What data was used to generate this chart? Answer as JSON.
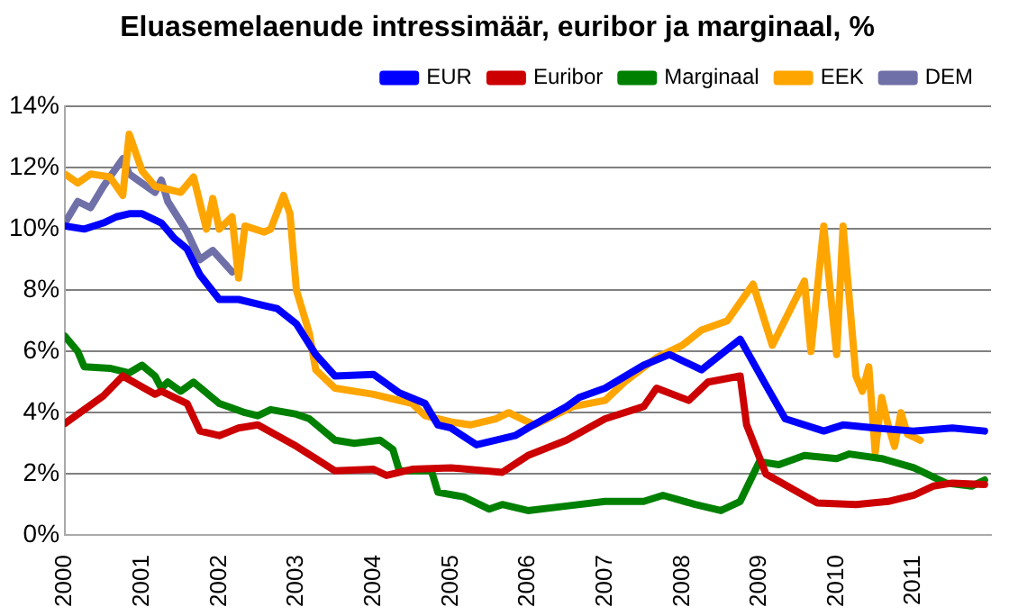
{
  "chart_data": {
    "type": "line",
    "title": "Eluasemelaenude intressimäär, euribor ja marginaal, %",
    "xlim": [
      "2000",
      "2012"
    ],
    "xticks": [
      "2000",
      "2001",
      "2002",
      "2003",
      "2004",
      "2005",
      "2006",
      "2007",
      "2008",
      "2009",
      "2010",
      "2011"
    ],
    "ylim": [
      0,
      14
    ],
    "yticks": [
      {
        "value": 0,
        "label": "0%"
      },
      {
        "value": 2,
        "label": "2%"
      },
      {
        "value": 4,
        "label": "4%"
      },
      {
        "value": 6,
        "label": "6%"
      },
      {
        "value": 8,
        "label": "8%"
      },
      {
        "value": 10,
        "label": "10%"
      },
      {
        "value": 12,
        "label": "12%"
      },
      {
        "value": 14,
        "label": "14%"
      }
    ],
    "grid": "y",
    "legend": "top right",
    "marker": "none",
    "line_style": "solid",
    "series": [
      {
        "name": "EUR",
        "color": "#0000ff",
        "x": [
          "2000-01",
          "2000-04",
          "2000-07",
          "2000-09",
          "2000-11",
          "2001-01",
          "2001-04",
          "2001-06",
          "2001-08",
          "2001-10",
          "2002-01",
          "2002-04",
          "2002-08",
          "2002-10",
          "2003-01",
          "2003-04",
          "2003-07",
          "2004-01",
          "2004-05",
          "2004-09",
          "2004-11",
          "2005-01",
          "2005-05",
          "2005-11",
          "2006-01",
          "2006-07",
          "2006-09",
          "2007-01",
          "2007-07",
          "2007-11",
          "2008-04",
          "2008-10",
          "2009-02",
          "2009-05",
          "2009-11",
          "2010-02",
          "2010-07",
          "2011-01",
          "2011-07",
          "2011-12"
        ],
        "values": [
          10.1,
          10.0,
          10.2,
          10.4,
          10.5,
          10.5,
          10.2,
          9.7,
          9.35,
          8.5,
          7.7,
          7.7,
          7.5,
          7.4,
          6.9,
          5.9,
          5.2,
          5.25,
          4.65,
          4.3,
          3.6,
          3.5,
          2.95,
          3.25,
          3.5,
          4.2,
          4.5,
          4.8,
          5.55,
          5.9,
          5.4,
          6.4,
          4.9,
          3.8,
          3.4,
          3.6,
          3.5,
          3.4,
          3.5,
          3.4
        ]
      },
      {
        "name": "Euribor",
        "color": "#cc0000",
        "x": [
          "2000-01",
          "2000-07",
          "2000-10",
          "2001-03",
          "2001-04",
          "2001-08",
          "2001-10",
          "2002-01",
          "2002-04",
          "2002-07",
          "2003-01",
          "2003-04",
          "2003-07",
          "2004-01",
          "2004-03",
          "2004-07",
          "2005-01",
          "2005-09",
          "2006-01",
          "2006-07",
          "2007-01",
          "2007-07",
          "2007-09",
          "2008-02",
          "2008-05",
          "2008-10",
          "2008-11",
          "2009-02",
          "2009-07",
          "2009-10",
          "2010-04",
          "2010-09",
          "2011-01",
          "2011-04",
          "2011-07",
          "2011-12"
        ],
        "values": [
          3.65,
          4.55,
          5.2,
          4.6,
          4.7,
          4.3,
          3.4,
          3.25,
          3.5,
          3.6,
          2.9,
          2.5,
          2.1,
          2.15,
          1.95,
          2.15,
          2.2,
          2.05,
          2.6,
          3.1,
          3.8,
          4.2,
          4.8,
          4.4,
          5.0,
          5.2,
          3.6,
          2.0,
          1.4,
          1.05,
          1.0,
          1.1,
          1.3,
          1.6,
          1.7,
          1.65
        ]
      },
      {
        "name": "Marginaal",
        "color": "#008000",
        "x": [
          "2000-01",
          "2000-03",
          "2000-04",
          "2000-08",
          "2000-11",
          "2001-01",
          "2001-03",
          "2001-04",
          "2001-05",
          "2001-07",
          "2001-09",
          "2002-01",
          "2002-05",
          "2002-07",
          "2002-09",
          "2003-01",
          "2003-03",
          "2003-07",
          "2003-10",
          "2004-02",
          "2004-04",
          "2004-05",
          "2004-10",
          "2004-11",
          "2005-03",
          "2005-07",
          "2005-09",
          "2006-01",
          "2006-07",
          "2007-01",
          "2007-07",
          "2007-10",
          "2008-03",
          "2008-07",
          "2008-10",
          "2009-01",
          "2009-04",
          "2009-08",
          "2010-01",
          "2010-03",
          "2010-08",
          "2011-01",
          "2011-06",
          "2011-10",
          "2011-12"
        ],
        "values": [
          6.5,
          6.0,
          5.5,
          5.45,
          5.3,
          5.55,
          5.2,
          4.8,
          5.0,
          4.7,
          5.0,
          4.3,
          4.0,
          3.9,
          4.1,
          3.95,
          3.8,
          3.1,
          3.0,
          3.1,
          2.8,
          2.1,
          2.1,
          1.4,
          1.25,
          0.85,
          1.0,
          0.8,
          0.95,
          1.1,
          1.1,
          1.3,
          1.0,
          0.8,
          1.1,
          2.4,
          2.3,
          2.6,
          2.5,
          2.65,
          2.5,
          2.2,
          1.7,
          1.6,
          1.8
        ]
      },
      {
        "name": "EEK",
        "color": "#ffa500",
        "x": [
          "2000-01",
          "2000-03",
          "2000-05",
          "2000-08",
          "2000-10",
          "2000-11",
          "2001-01",
          "2001-03",
          "2001-07",
          "2001-09",
          "2001-11",
          "2001-12",
          "2002-01",
          "2002-03",
          "2002-04",
          "2002-05",
          "2002-08",
          "2002-09",
          "2002-11",
          "2002-12",
          "2003-01",
          "2003-03",
          "2003-04",
          "2003-07",
          "2004-01",
          "2004-07",
          "2004-09",
          "2005-01",
          "2005-04",
          "2005-08",
          "2005-10",
          "2005-11",
          "2006-02",
          "2006-04",
          "2006-08",
          "2007-01",
          "2007-04",
          "2007-09",
          "2008-01",
          "2008-04",
          "2008-08",
          "2008-12",
          "2009-03",
          "2009-08",
          "2009-09",
          "2009-11",
          "2010-01",
          "2010-02",
          "2010-04",
          "2010-05",
          "2010-06",
          "2010-07",
          "2010-08",
          "2010-09",
          "2010-10",
          "2010-11",
          "2010-12",
          "2011-02"
        ],
        "values": [
          11.8,
          11.5,
          11.8,
          11.7,
          11.1,
          13.1,
          11.9,
          11.4,
          11.2,
          11.7,
          10.0,
          11.0,
          10.0,
          10.4,
          8.4,
          10.1,
          9.9,
          10.0,
          11.1,
          10.5,
          8.0,
          6.6,
          5.4,
          4.8,
          4.6,
          4.3,
          3.9,
          3.7,
          3.6,
          3.8,
          4.0,
          3.9,
          3.6,
          3.8,
          4.2,
          4.4,
          5.0,
          5.8,
          6.2,
          6.7,
          7.0,
          8.2,
          6.2,
          8.3,
          6.0,
          10.1,
          5.9,
          10.1,
          5.2,
          4.7,
          5.5,
          2.7,
          4.5,
          3.6,
          2.9,
          4.0,
          3.3,
          3.1
        ]
      },
      {
        "name": "DEM",
        "color": "#7070a8",
        "x": [
          "2000-01",
          "2000-03",
          "2000-05",
          "2000-07",
          "2000-10",
          "2000-11",
          "2001-03",
          "2001-04",
          "2001-05",
          "2001-08",
          "2001-10",
          "2001-12",
          "2002-03"
        ],
        "values": [
          10.2,
          10.9,
          10.7,
          11.4,
          12.3,
          11.8,
          11.2,
          11.6,
          10.9,
          9.9,
          9.0,
          9.3,
          8.6
        ]
      }
    ]
  }
}
